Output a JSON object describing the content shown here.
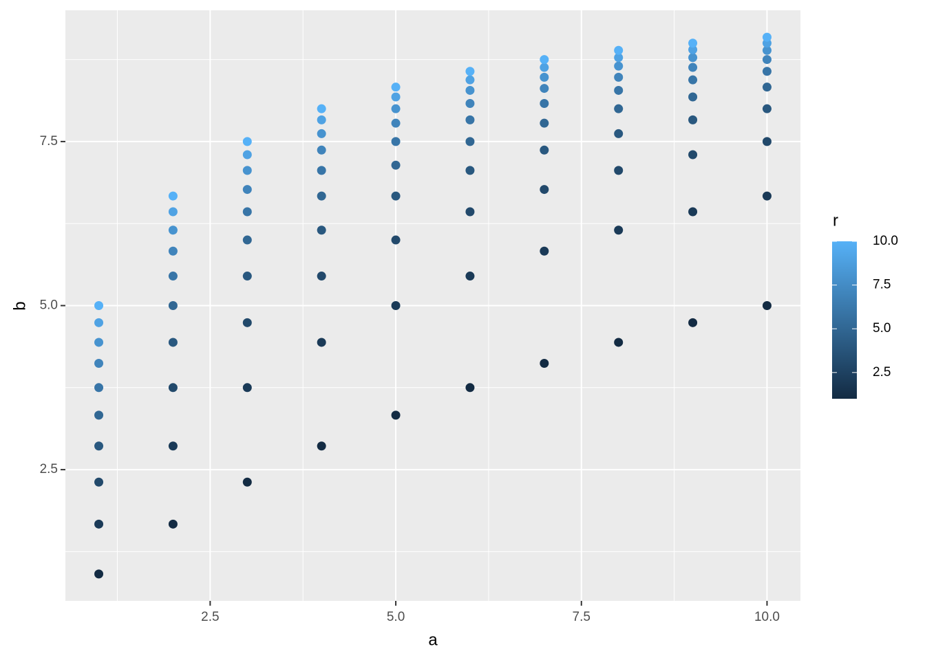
{
  "chart_data": {
    "type": "scatter",
    "x_label": "a",
    "y_label": "b",
    "legend_title": "r",
    "x": [
      1,
      1,
      1,
      1,
      1,
      1,
      1,
      1,
      1,
      1,
      2,
      2,
      2,
      2,
      2,
      2,
      2,
      2,
      2,
      2,
      3,
      3,
      3,
      3,
      3,
      3,
      3,
      3,
      3,
      3,
      4,
      4,
      4,
      4,
      4,
      4,
      4,
      4,
      4,
      4,
      5,
      5,
      5,
      5,
      5,
      5,
      5,
      5,
      5,
      5,
      6,
      6,
      6,
      6,
      6,
      6,
      6,
      6,
      6,
      6,
      7,
      7,
      7,
      7,
      7,
      7,
      7,
      7,
      7,
      7,
      8,
      8,
      8,
      8,
      8,
      8,
      8,
      8,
      8,
      8,
      9,
      9,
      9,
      9,
      9,
      9,
      9,
      9,
      9,
      9,
      10,
      10,
      10,
      10,
      10,
      10,
      10,
      10,
      10,
      10
    ],
    "values": [
      0.91,
      1.67,
      2.31,
      2.86,
      3.33,
      3.75,
      4.12,
      4.44,
      4.74,
      5,
      1.67,
      2.86,
      3.75,
      4.44,
      5,
      5.45,
      5.83,
      6.15,
      6.43,
      6.67,
      2.31,
      3.75,
      4.74,
      5.45,
      6,
      6.43,
      6.77,
      7.06,
      7.3,
      7.5,
      2.86,
      4.44,
      5.45,
      6.15,
      6.67,
      7.06,
      7.37,
      7.62,
      7.83,
      8,
      3.33,
      5,
      6,
      6.67,
      7.14,
      7.5,
      7.78,
      8,
      8.18,
      8.33,
      3.75,
      5.45,
      6.43,
      7.06,
      7.5,
      7.83,
      8.08,
      8.28,
      8.44,
      8.57,
      4.12,
      5.83,
      6.77,
      7.37,
      7.78,
      8.08,
      8.31,
      8.48,
      8.63,
      8.75,
      4.44,
      6.15,
      7.06,
      7.62,
      8,
      8.28,
      8.48,
      8.65,
      8.78,
      8.89,
      4.74,
      6.43,
      7.3,
      7.83,
      8.18,
      8.44,
      8.63,
      8.78,
      8.9,
      9,
      5,
      6.67,
      7.5,
      8,
      8.33,
      8.57,
      8.75,
      8.89,
      9,
      9.09
    ],
    "color_values": [
      1,
      2,
      3,
      4,
      5,
      6,
      7,
      8,
      9,
      10,
      1,
      2,
      3,
      4,
      5,
      6,
      7,
      8,
      9,
      10,
      1,
      2,
      3,
      4,
      5,
      6,
      7,
      8,
      9,
      10,
      1,
      2,
      3,
      4,
      5,
      6,
      7,
      8,
      9,
      10,
      1,
      2,
      3,
      4,
      5,
      6,
      7,
      8,
      9,
      10,
      1,
      2,
      3,
      4,
      5,
      6,
      7,
      8,
      9,
      10,
      1,
      2,
      3,
      4,
      5,
      6,
      7,
      8,
      9,
      10,
      1,
      2,
      3,
      4,
      5,
      6,
      7,
      8,
      9,
      10,
      1,
      2,
      3,
      4,
      5,
      6,
      7,
      8,
      9,
      10,
      1,
      2,
      3,
      4,
      5,
      6,
      7,
      8,
      9,
      10
    ],
    "color_low": "#132b43",
    "color_high": "#56b1f7",
    "color_lim": [
      1,
      10
    ],
    "color_ticks": [
      2.5,
      {
        "value": 5,
        "label": "5.0"
      },
      7.5,
      {
        "value": 10,
        "label": "10.0"
      }
    ],
    "xlim": [
      0.55,
      10.45
    ],
    "ylim": [
      0.5,
      9.5
    ],
    "xticks": [
      2.5,
      {
        "value": 5,
        "label": "5.0"
      },
      7.5,
      {
        "value": 10,
        "label": "10.0"
      }
    ],
    "yticks": [
      2.5,
      {
        "value": 5,
        "label": "5.0"
      },
      7.5
    ],
    "xminor": [
      1.25,
      3.75,
      6.25,
      8.75
    ],
    "yminor": [
      1.25,
      3.75,
      6.25,
      8.75
    ],
    "grid": true
  }
}
